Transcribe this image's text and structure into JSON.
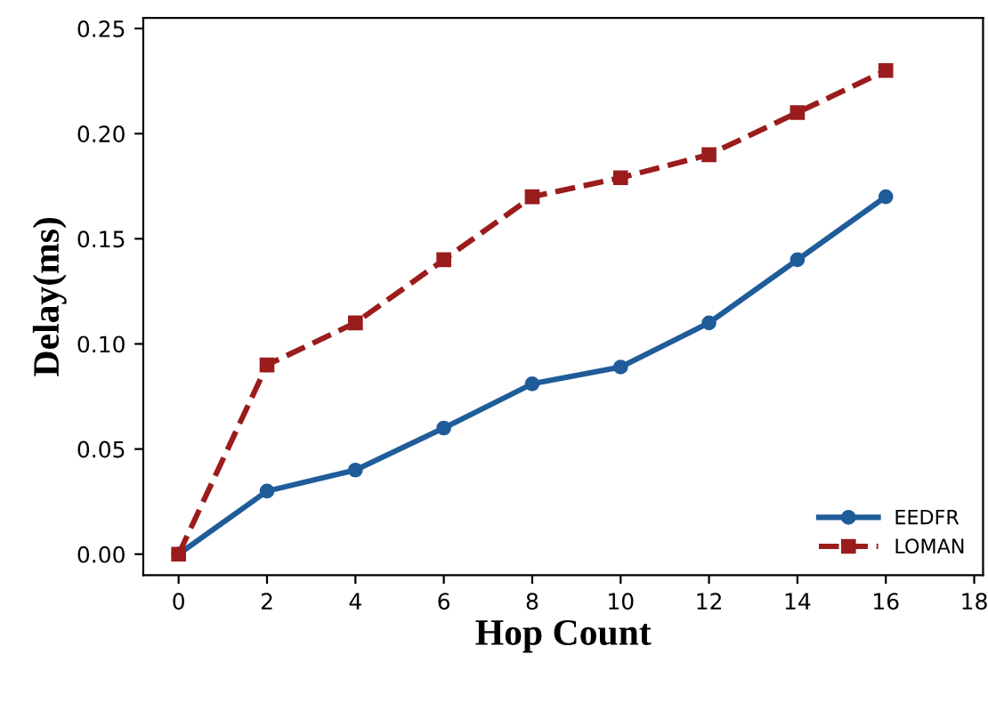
{
  "chart_data": {
    "type": "line",
    "xlabel": "Hop Count",
    "ylabel": "Delay(ms)",
    "x": [
      0,
      2,
      4,
      6,
      8,
      10,
      12,
      14,
      16
    ],
    "series": [
      {
        "name": "EEDFR",
        "color": "#1f5c99",
        "marker": "circle",
        "line_style": "solid",
        "values": [
          0,
          0.03,
          0.04,
          0.06,
          0.081,
          0.089,
          0.11,
          0.14,
          0.17
        ]
      },
      {
        "name": "LOMAN",
        "color": "#9b1c1c",
        "marker": "square",
        "line_style": "dashed",
        "values": [
          0,
          0.09,
          0.11,
          0.14,
          0.17,
          0.179,
          0.19,
          0.21,
          0.23
        ]
      }
    ],
    "xlim": [
      -0.8,
      18.2
    ],
    "xticks": [
      0,
      2,
      4,
      6,
      8,
      10,
      12,
      14,
      16,
      18
    ],
    "ylim": [
      -0.01,
      0.255
    ],
    "yticks": [
      {
        "value": 0,
        "label": "0.00"
      },
      {
        "value": 0.05,
        "label": "0.05"
      },
      {
        "value": 0.1,
        "label": "0.10"
      },
      {
        "value": 0.15,
        "label": "0.15"
      },
      {
        "value": 0.2,
        "label": "0.20"
      },
      {
        "value": 0.25,
        "label": "0.25"
      }
    ],
    "grid": false,
    "legend": "bottom right"
  }
}
